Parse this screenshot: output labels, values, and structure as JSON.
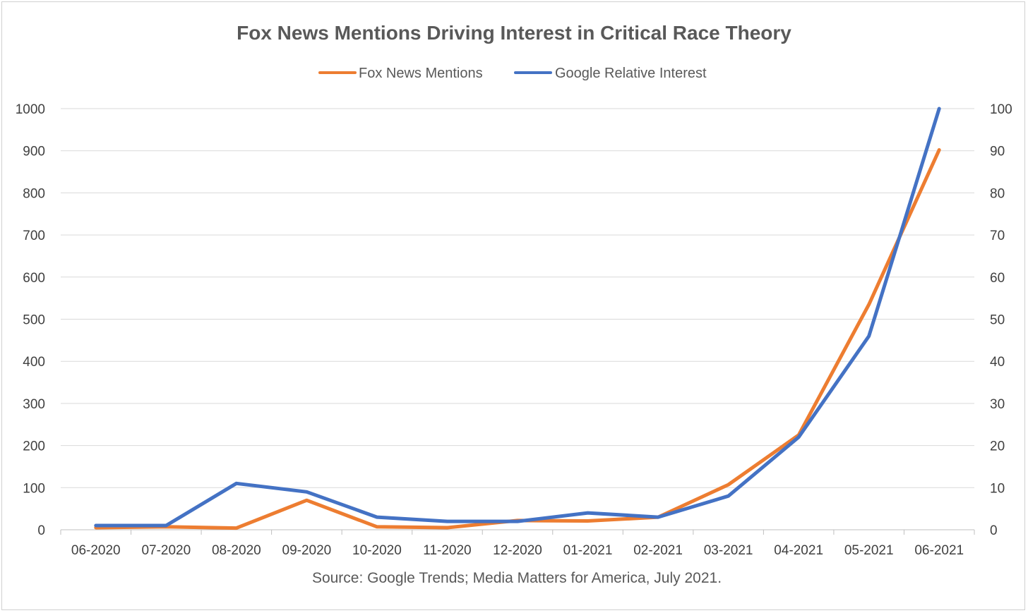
{
  "chart_data": {
    "type": "line",
    "title": "Fox News Mentions Driving Interest in Critical Race Theory",
    "source": "Source: Google Trends; Media Matters for America, July 2021.",
    "categories": [
      "06-2020",
      "07-2020",
      "08-2020",
      "09-2020",
      "10-2020",
      "11-2020",
      "12-2020",
      "01-2021",
      "02-2021",
      "03-2021",
      "04-2021",
      "05-2021",
      "06-2021"
    ],
    "series": [
      {
        "name": "Fox News Mentions",
        "axis": "left",
        "color": "#ED7D31",
        "values": [
          5,
          7,
          4,
          70,
          7,
          5,
          22,
          21,
          30,
          107,
          225,
          535,
          902
        ]
      },
      {
        "name": "Google Relative Interest",
        "axis": "right",
        "color": "#4472C4",
        "values": [
          1,
          1,
          11,
          9,
          3,
          2,
          2,
          4,
          3,
          8,
          22,
          46,
          100
        ]
      }
    ],
    "y_left": {
      "ylim": [
        0,
        1000
      ],
      "ticks": [
        "0",
        "100",
        "200",
        "300",
        "400",
        "500",
        "600",
        "700",
        "800",
        "900",
        "1000"
      ]
    },
    "y_right": {
      "ylim": [
        0,
        100
      ],
      "ticks": [
        "0",
        "10",
        "20",
        "30",
        "40",
        "50",
        "60",
        "70",
        "80",
        "90",
        "100"
      ]
    },
    "grid": true,
    "legend_position": "top"
  }
}
